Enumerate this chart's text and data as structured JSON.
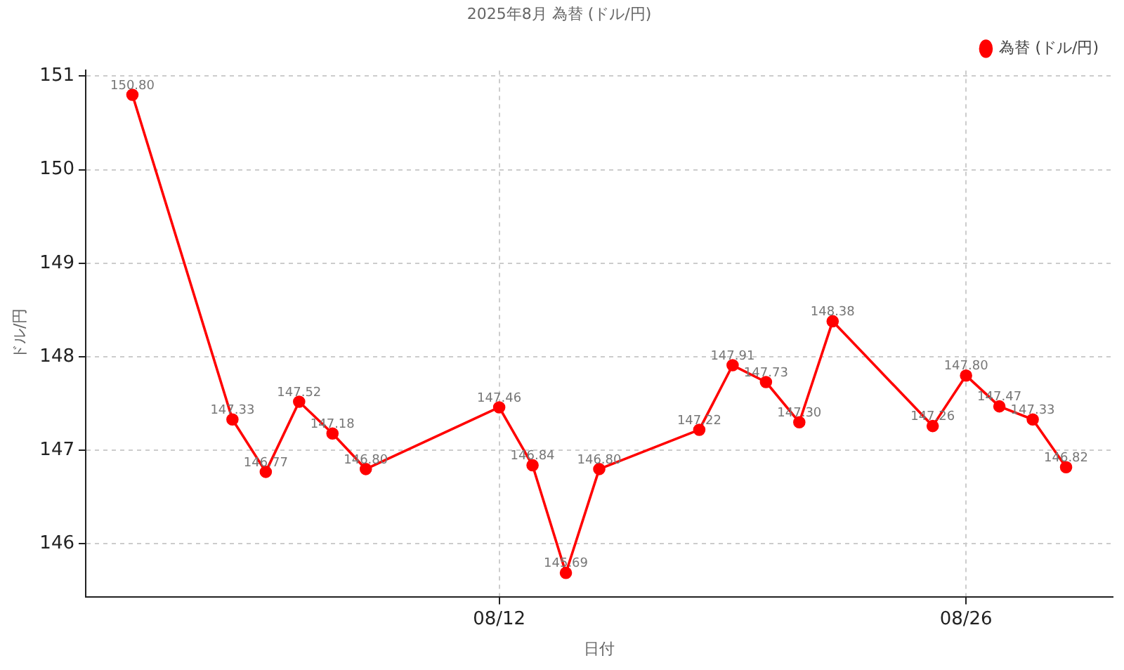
{
  "chart_data": {
    "type": "line",
    "title": "2025年8月 為替 (ドル/円)",
    "xlabel": "日付",
    "ylabel": "ドル/円",
    "x": [
      "2025-08-01",
      "2025-08-04",
      "2025-08-05",
      "2025-08-06",
      "2025-08-07",
      "2025-08-08",
      "2025-08-12",
      "2025-08-13",
      "2025-08-14",
      "2025-08-15",
      "2025-08-18",
      "2025-08-19",
      "2025-08-20",
      "2025-08-21",
      "2025-08-22",
      "2025-08-25",
      "2025-08-26",
      "2025-08-27",
      "2025-08-28",
      "2025-08-29"
    ],
    "series": [
      {
        "name": "為替 (ドル/円)",
        "color": "#ff0000",
        "values": [
          150.8,
          147.33,
          146.77,
          147.52,
          147.18,
          146.8,
          147.46,
          146.84,
          145.69,
          146.8,
          147.22,
          147.91,
          147.73,
          147.3,
          148.38,
          147.26,
          147.8,
          147.47,
          147.33,
          146.82
        ],
        "value_labels": [
          "150.80",
          "147.33",
          "146.77",
          "147.52",
          "147.18",
          "146.80",
          "147.46",
          "146.84",
          "145.69",
          "146.80",
          "147.22",
          "147.91",
          "147.73",
          "147.30",
          "148.38",
          "147.26",
          "147.80",
          "147.47",
          "147.33",
          "146.82"
        ]
      }
    ],
    "xlim": [
      "2025-07-30T14:24",
      "2025-08-30T09:36"
    ],
    "xticks": [
      {
        "value": "2025-08-12",
        "label": "08/12"
      },
      {
        "value": "2025-08-26",
        "label": "08/26"
      }
    ],
    "ylim": [
      145.43,
      151.06
    ],
    "yticks": [
      146,
      147,
      148,
      149,
      150,
      151
    ],
    "grid": true,
    "legend": "top right",
    "marker": "circle",
    "line_style": "solid"
  }
}
